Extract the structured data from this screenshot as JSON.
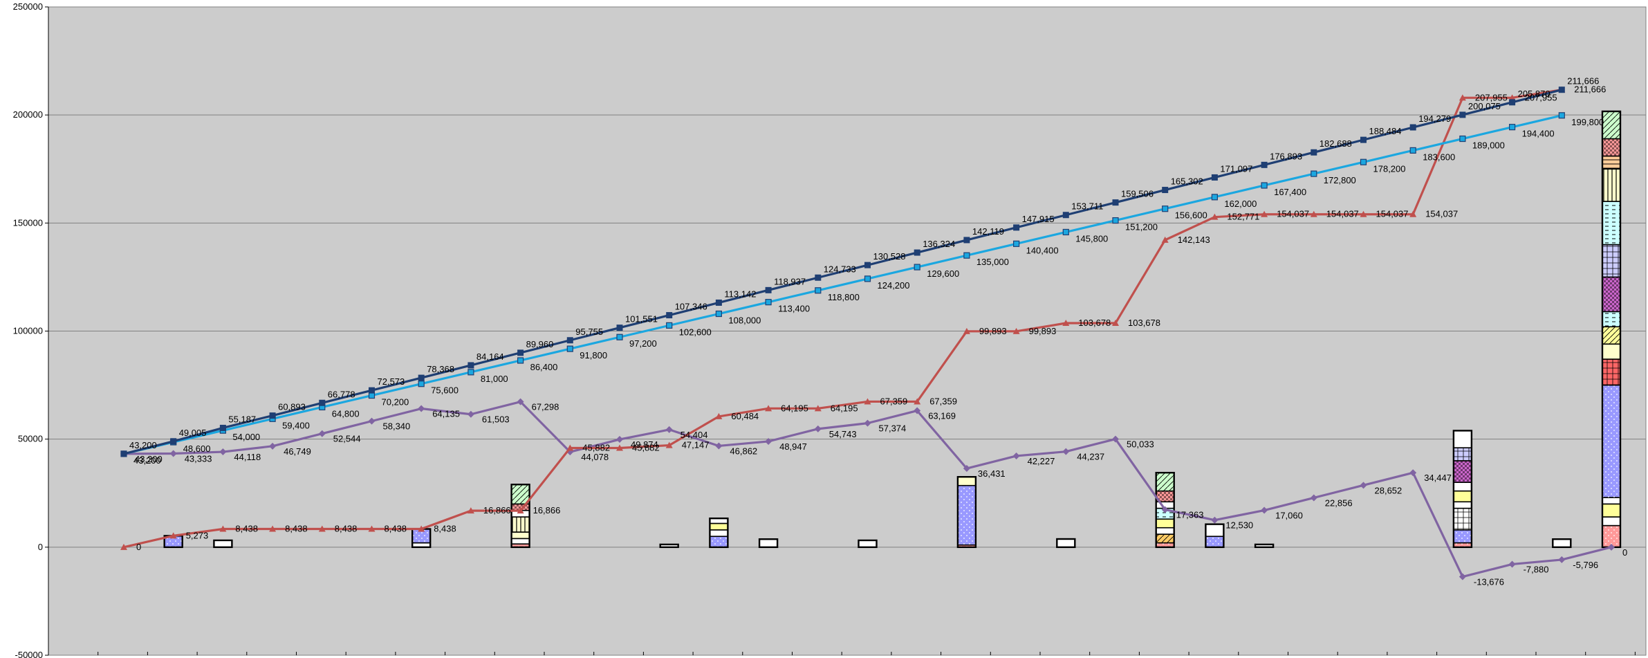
{
  "chart_data": {
    "type": "line",
    "title": "",
    "xlabel": "",
    "ylabel": "",
    "ylim": [
      -50000,
      250000
    ],
    "y_ticks": [
      -50000,
      0,
      50000,
      100000,
      150000,
      200000,
      250000
    ],
    "y_tick_labels": [
      "-50000",
      "0",
      "50000",
      "100000",
      "150000",
      "200000",
      "250000"
    ],
    "grid": "horizontal",
    "legend": "none",
    "plot_background": "#cccccc",
    "x_count": 31,
    "series": [
      {
        "color": "#1f3f73",
        "marker": "square",
        "values": [
          43200,
          49005,
          55187,
          60893,
          66778,
          72573,
          78368,
          84164,
          89960,
          95755,
          101551,
          107346,
          113142,
          118937,
          124733,
          130528,
          136324,
          142119,
          147915,
          153711,
          159506,
          165302,
          171097,
          176893,
          182688,
          188484,
          194279,
          200075,
          205870,
          211666,
          null
        ],
        "labels": [
          "43,200",
          "49,005",
          "55,187",
          "60,893",
          "66,778",
          "72,573",
          "78,368",
          "84,164",
          "89,960",
          "95,755",
          "101,551",
          "107,346",
          "113,142",
          "118,937",
          "124,733",
          "130,528",
          "136,324",
          "142,119",
          "147,915",
          "153,711",
          "159,506",
          "165,302",
          "171,097",
          "176,893",
          "182,688",
          "188,484",
          "194,279",
          "200,075",
          "205,870",
          "211,666",
          ""
        ]
      },
      {
        "color": "#1ba7e0",
        "marker": "square-open",
        "values": [
          43200,
          48600,
          54000,
          59400,
          64800,
          70200,
          75600,
          81000,
          86400,
          91800,
          97200,
          102600,
          108000,
          113400,
          118800,
          124200,
          129600,
          135000,
          140400,
          145800,
          151200,
          156600,
          162000,
          167400,
          172800,
          178200,
          183600,
          189000,
          194400,
          199800,
          null
        ],
        "labels": [
          "43,200",
          "48,600",
          "54,000",
          "59,400",
          "64,800",
          "70,200",
          "75,600",
          "81,000",
          "86,400",
          "91,800",
          "97,200",
          "102,600",
          "108,000",
          "113,400",
          "118,800",
          "124,200",
          "129,600",
          "135,000",
          "140,400",
          "145,800",
          "151,200",
          "156,600",
          "162,000",
          "167,400",
          "172,800",
          "178,200",
          "183,600",
          "189,000",
          "194,400",
          "199,800",
          ""
        ]
      },
      {
        "color": "#c0504d",
        "marker": "triangle",
        "values": [
          0,
          5273,
          8438,
          8438,
          8438,
          8438,
          8438,
          16866,
          16866,
          45882,
          45882,
          47147,
          60484,
          64195,
          64195,
          67359,
          67359,
          99893,
          99893,
          103678,
          103678,
          142143,
          152771,
          154037,
          154037,
          154037,
          154037,
          207955,
          207955,
          211666,
          null
        ],
        "labels": [
          "0",
          "5,273",
          "8,438",
          "8,438",
          "8,438",
          "8,438",
          "8,438",
          "16,866",
          "16,866",
          "45,882",
          "45,882",
          "47,147",
          "60,484",
          "64,195",
          "64,195",
          "67,359",
          "67,359",
          "99,893",
          "99,893",
          "103,678",
          "103,678",
          "142,143",
          "152,771",
          "154,037",
          "154,037",
          "154,037",
          "154,037",
          "207,955",
          "207,955",
          "211,666",
          ""
        ]
      },
      {
        "color": "#8064a2",
        "marker": "diamond",
        "values": [
          43200,
          43333,
          44118,
          46749,
          52544,
          58340,
          64135,
          61503,
          67298,
          44078,
          49874,
          54404,
          46862,
          48947,
          54743,
          57374,
          63169,
          36431,
          42227,
          44237,
          50033,
          17363,
          12530,
          17060,
          22856,
          28652,
          34447,
          -13676,
          -7880,
          -5796,
          0
        ],
        "labels": [
          "43,200",
          "43,333",
          "44,118",
          "46,749",
          "52,544",
          "58,340",
          "64,135",
          "61,503",
          "67,298",
          "44,078",
          "49,874",
          "54,404",
          "46,862",
          "48,947",
          "54,743",
          "57,374",
          "63,169",
          "36,431",
          "42,227",
          "44,237",
          "50,033",
          "17,363",
          "12,530",
          "17,060",
          "22,856",
          "28,652",
          "34,447",
          "-13,676",
          "-7,880",
          "-5,796",
          "0"
        ]
      }
    ],
    "bars": [
      {
        "x": 1,
        "segments": [
          {
            "value": 5273,
            "color": "#9999ff",
            "pattern": "dots"
          }
        ]
      },
      {
        "x": 2,
        "segments": [
          {
            "value": 3165,
            "color": "#ffffff",
            "pattern": "plain"
          }
        ]
      },
      {
        "x": 6,
        "segments": [
          {
            "value": 2000,
            "color": "#ffffff",
            "pattern": "plain"
          },
          {
            "value": 6428,
            "color": "#9999ff",
            "pattern": "dots"
          }
        ]
      },
      {
        "x": 8,
        "segments": [
          {
            "value": 1500,
            "color": "#ff9999",
            "pattern": "dots"
          },
          {
            "value": 2500,
            "color": "#ffffff",
            "pattern": "plain"
          },
          {
            "value": 3000,
            "color": "#ffffcc",
            "pattern": "plain"
          },
          {
            "value": 7000,
            "color": "#ffffcc",
            "pattern": "vstripes"
          },
          {
            "value": 3000,
            "color": "#ffffff",
            "pattern": "plain"
          },
          {
            "value": 3000,
            "color": "#ff9999",
            "pattern": "checker"
          },
          {
            "value": 9000,
            "color": "#ccffcc",
            "pattern": "diag"
          }
        ]
      },
      {
        "x": 11,
        "segments": [
          {
            "value": 1265,
            "color": "#ffffff",
            "pattern": "plain"
          }
        ]
      },
      {
        "x": 12,
        "segments": [
          {
            "value": 5000,
            "color": "#9999ff",
            "pattern": "dots"
          },
          {
            "value": 3000,
            "color": "#ffffff",
            "pattern": "plain"
          },
          {
            "value": 3000,
            "color": "#ffff99",
            "pattern": "plain"
          },
          {
            "value": 2337,
            "color": "#ffffff",
            "pattern": "plain"
          }
        ]
      },
      {
        "x": 13,
        "segments": [
          {
            "value": 3711,
            "color": "#ffffff",
            "pattern": "plain"
          }
        ]
      },
      {
        "x": 15,
        "segments": [
          {
            "value": 3164,
            "color": "#ffffff",
            "pattern": "plain"
          }
        ]
      },
      {
        "x": 17,
        "segments": [
          {
            "value": 1000,
            "color": "#ff9999",
            "pattern": "dots"
          },
          {
            "value": 27534,
            "color": "#9999ff",
            "pattern": "dots"
          },
          {
            "value": 4000,
            "color": "#ffffcc",
            "pattern": "plain"
          }
        ]
      },
      {
        "x": 19,
        "segments": [
          {
            "value": 3785,
            "color": "#ffffff",
            "pattern": "plain"
          }
        ]
      },
      {
        "x": 21,
        "segments": [
          {
            "value": 2000,
            "color": "#ff9999",
            "pattern": "dots"
          },
          {
            "value": 4000,
            "color": "#ffcc66",
            "pattern": "diag"
          },
          {
            "value": 3000,
            "color": "#ffffff",
            "pattern": "plain"
          },
          {
            "value": 4000,
            "color": "#ffff99",
            "pattern": "plain"
          },
          {
            "value": 5000,
            "color": "#ccffff",
            "pattern": "dash"
          },
          {
            "value": 3000,
            "color": "#ffffff",
            "pattern": "plain"
          },
          {
            "value": 5000,
            "color": "#ff9999",
            "pattern": "checker"
          },
          {
            "value": 8465,
            "color": "#ccffcc",
            "pattern": "diag"
          }
        ]
      },
      {
        "x": 22,
        "segments": [
          {
            "value": 5000,
            "color": "#9999ff",
            "pattern": "dots"
          },
          {
            "value": 5628,
            "color": "#ffffff",
            "pattern": "plain"
          }
        ]
      },
      {
        "x": 23,
        "segments": [
          {
            "value": 1266,
            "color": "#ffffff",
            "pattern": "plain"
          }
        ]
      },
      {
        "x": 27,
        "segments": [
          {
            "value": 2000,
            "color": "#ff9999",
            "pattern": "dots"
          },
          {
            "value": 6000,
            "color": "#9999ff",
            "pattern": "dots"
          },
          {
            "value": 10000,
            "color": "#ffffff",
            "pattern": "grid"
          },
          {
            "value": 3000,
            "color": "#ffffff",
            "pattern": "plain"
          },
          {
            "value": 5000,
            "color": "#ffff99",
            "pattern": "plain"
          },
          {
            "value": 4000,
            "color": "#ffffff",
            "pattern": "plain"
          },
          {
            "value": 10000,
            "color": "#cc66cc",
            "pattern": "checker"
          },
          {
            "value": 6000,
            "color": "#ccccff",
            "pattern": "grid"
          },
          {
            "value": 7918,
            "color": "#ffffff",
            "pattern": "plain"
          }
        ]
      },
      {
        "x": 29,
        "segments": [
          {
            "value": 3711,
            "color": "#ffffff",
            "pattern": "plain"
          }
        ]
      },
      {
        "x": 30,
        "segments": [
          {
            "value": 10000,
            "color": "#ff9999",
            "pattern": "dots"
          },
          {
            "value": 4000,
            "color": "#ffffff",
            "pattern": "plain"
          },
          {
            "value": 6000,
            "color": "#ffff99",
            "pattern": "plain"
          },
          {
            "value": 3000,
            "color": "#ffffff",
            "pattern": "plain"
          },
          {
            "value": 52000,
            "color": "#9999ff",
            "pattern": "dots"
          },
          {
            "value": 12000,
            "color": "#ff6666",
            "pattern": "grid"
          },
          {
            "value": 7000,
            "color": "#ffffcc",
            "pattern": "plain"
          },
          {
            "value": 8000,
            "color": "#ffff99",
            "pattern": "diag"
          },
          {
            "value": 7000,
            "color": "#ccffff",
            "pattern": "dash"
          },
          {
            "value": 16000,
            "color": "#cc66cc",
            "pattern": "checker"
          },
          {
            "value": 15000,
            "color": "#ccccff",
            "pattern": "grid"
          },
          {
            "value": 20000,
            "color": "#ccffff",
            "pattern": "dash"
          },
          {
            "value": 15000,
            "color": "#ffffcc",
            "pattern": "vstripes"
          },
          {
            "value": 6000,
            "color": "#ffcc99",
            "pattern": "hstripes"
          },
          {
            "value": 8000,
            "color": "#ff9999",
            "pattern": "checker"
          },
          {
            "value": 12666,
            "color": "#ccffcc",
            "pattern": "diag"
          }
        ]
      }
    ]
  }
}
